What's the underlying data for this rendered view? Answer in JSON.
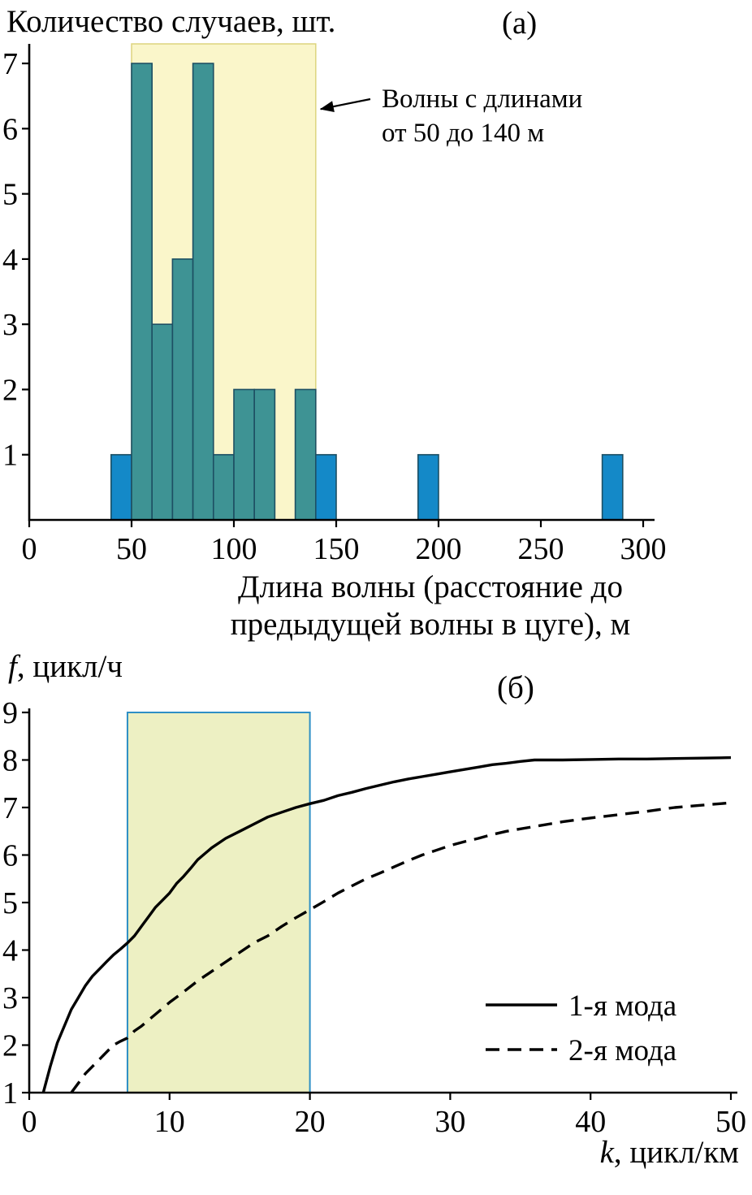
{
  "panel_a": {
    "panel_label": "(а)",
    "ylabel_title": "Количество случаев, шт.",
    "xlabel_line1": "Длина волны (расстояние до",
    "xlabel_line2": "предыдущей волны в цуге), м"
  },
  "panel_b": {
    "panel_label": "(б)",
    "ylabel_var": "f",
    "ylabel_rest": ", цикл/ч",
    "xlabel_var": "k",
    "xlabel_rest": ", цикл/км"
  },
  "chart_data": [
    {
      "type": "bar",
      "panel": "(а)",
      "title": "Количество случаев, шт.",
      "xlabel": "Длина волны (расстояние до предыдущей волны в цуге), м",
      "ylabel": "Количество случаев, шт.",
      "xlim": [
        0,
        300
      ],
      "ylim": [
        0,
        7.3
      ],
      "xticks": [
        0,
        50,
        100,
        150,
        200,
        250,
        300
      ],
      "yticks": [
        1,
        2,
        3,
        4,
        5,
        6,
        7
      ],
      "bin_width": 10,
      "bars": [
        {
          "x0": 40,
          "count": 1,
          "region": "outside"
        },
        {
          "x0": 50,
          "count": 7,
          "region": "inside"
        },
        {
          "x0": 60,
          "count": 3,
          "region": "inside"
        },
        {
          "x0": 70,
          "count": 4,
          "region": "inside"
        },
        {
          "x0": 80,
          "count": 7,
          "region": "inside"
        },
        {
          "x0": 90,
          "count": 1,
          "region": "inside"
        },
        {
          "x0": 100,
          "count": 2,
          "region": "inside"
        },
        {
          "x0": 110,
          "count": 2,
          "region": "inside"
        },
        {
          "x0": 130,
          "count": 2,
          "region": "inside"
        },
        {
          "x0": 140,
          "count": 1,
          "region": "outside"
        },
        {
          "x0": 190,
          "count": 1,
          "region": "outside"
        },
        {
          "x0": 280,
          "count": 1,
          "region": "outside"
        }
      ],
      "highlight_region": {
        "x0": 50,
        "x1": 140
      },
      "annotation": {
        "lines": [
          "Волны с длинами",
          "от 50 до 140 м"
        ],
        "arrow_target_x": 140,
        "arrow_target_y": 6.3
      },
      "colors": {
        "bar_inside": "#3e9394",
        "bar_outside": "#1489c8",
        "bar_stroke": "#1d4f63",
        "highlight_fill": "#faf6ca",
        "highlight_stroke": "#ddd47e"
      }
    },
    {
      "type": "line",
      "panel": "(б)",
      "title": "",
      "xlabel": "k, цикл/км",
      "ylabel": "f, цикл/ч",
      "xlim": [
        0,
        50
      ],
      "ylim": [
        1,
        9
      ],
      "xticks": [
        0,
        10,
        20,
        30,
        40,
        50
      ],
      "yticks": [
        1,
        2,
        3,
        4,
        5,
        6,
        7,
        8,
        9
      ],
      "highlight_region": {
        "x0": 7,
        "x1": 20
      },
      "series": [
        {
          "name": "1-я мода",
          "style": "solid",
          "points": [
            [
              1,
              1
            ],
            [
              1.5,
              1.55
            ],
            [
              2,
              2.05
            ],
            [
              2.5,
              2.4
            ],
            [
              3,
              2.75
            ],
            [
              3.5,
              3.0
            ],
            [
              4,
              3.25
            ],
            [
              4.5,
              3.45
            ],
            [
              5,
              3.6
            ],
            [
              5.5,
              3.75
            ],
            [
              6,
              3.9
            ],
            [
              6.5,
              4.02
            ],
            [
              7,
              4.15
            ],
            [
              7.5,
              4.3
            ],
            [
              8,
              4.5
            ],
            [
              8.5,
              4.7
            ],
            [
              9,
              4.9
            ],
            [
              9.5,
              5.05
            ],
            [
              10,
              5.2
            ],
            [
              10.5,
              5.4
            ],
            [
              11,
              5.55
            ],
            [
              11.5,
              5.72
            ],
            [
              12,
              5.9
            ],
            [
              13,
              6.15
            ],
            [
              14,
              6.35
            ],
            [
              15,
              6.5
            ],
            [
              16,
              6.65
            ],
            [
              17,
              6.8
            ],
            [
              18,
              6.9
            ],
            [
              19,
              7.0
            ],
            [
              20,
              7.08
            ],
            [
              21,
              7.15
            ],
            [
              22,
              7.25
            ],
            [
              23,
              7.32
            ],
            [
              24,
              7.4
            ],
            [
              25,
              7.47
            ],
            [
              26,
              7.54
            ],
            [
              27,
              7.6
            ],
            [
              28,
              7.65
            ],
            [
              29,
              7.7
            ],
            [
              30,
              7.75
            ],
            [
              31,
              7.8
            ],
            [
              32,
              7.85
            ],
            [
              33,
              7.9
            ],
            [
              34,
              7.93
            ],
            [
              35,
              7.97
            ],
            [
              36,
              8.0
            ],
            [
              38,
              8.0
            ],
            [
              40,
              8.01
            ],
            [
              42,
              8.02
            ],
            [
              44,
              8.02
            ],
            [
              46,
              8.03
            ],
            [
              48,
              8.04
            ],
            [
              50,
              8.05
            ]
          ]
        },
        {
          "name": "2-я мода",
          "style": "dashed",
          "points": [
            [
              3,
              1
            ],
            [
              3.5,
              1.2
            ],
            [
              4,
              1.4
            ],
            [
              4.5,
              1.55
            ],
            [
              5,
              1.7
            ],
            [
              5.5,
              1.85
            ],
            [
              6,
              2.0
            ],
            [
              6.5,
              2.08
            ],
            [
              7,
              2.15
            ],
            [
              7.5,
              2.3
            ],
            [
              8,
              2.4
            ],
            [
              9,
              2.65
            ],
            [
              10,
              2.9
            ],
            [
              11,
              3.12
            ],
            [
              12,
              3.35
            ],
            [
              13,
              3.55
            ],
            [
              14,
              3.75
            ],
            [
              15,
              3.95
            ],
            [
              16,
              4.15
            ],
            [
              17,
              4.3
            ],
            [
              18,
              4.5
            ],
            [
              19,
              4.68
            ],
            [
              20,
              4.85
            ],
            [
              21,
              5.02
            ],
            [
              22,
              5.2
            ],
            [
              23,
              5.35
            ],
            [
              24,
              5.5
            ],
            [
              25,
              5.62
            ],
            [
              26,
              5.75
            ],
            [
              27,
              5.88
            ],
            [
              28,
              6.0
            ],
            [
              29,
              6.1
            ],
            [
              30,
              6.2
            ],
            [
              31,
              6.28
            ],
            [
              32,
              6.35
            ],
            [
              33,
              6.43
            ],
            [
              34,
              6.5
            ],
            [
              36,
              6.6
            ],
            [
              38,
              6.7
            ],
            [
              40,
              6.78
            ],
            [
              42,
              6.85
            ],
            [
              44,
              6.92
            ],
            [
              46,
              7.0
            ],
            [
              48,
              7.05
            ],
            [
              50,
              7.1
            ]
          ]
        }
      ],
      "legend": {
        "position": "bottom-right",
        "items": [
          {
            "label": "1-я мода",
            "style": "solid"
          },
          {
            "label": "2-я мода",
            "style": "dashed"
          }
        ]
      },
      "colors": {
        "line": "#000000",
        "highlight_fill": "#edf0c3",
        "highlight_stroke": "#2e8fc5"
      }
    }
  ]
}
